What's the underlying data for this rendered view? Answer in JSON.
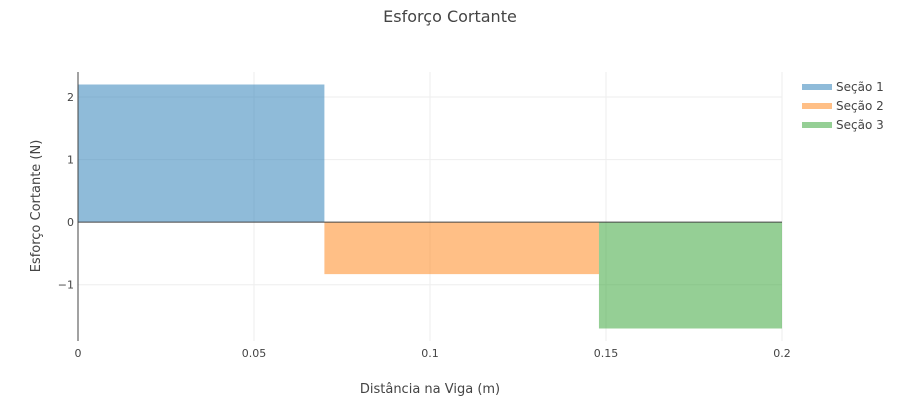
{
  "chart_data": {
    "type": "area",
    "title": "Esforço Cortante",
    "xlabel": "Distância na Viga (m)",
    "ylabel": "Esforço Cortante (N)",
    "xlim": [
      0,
      0.2
    ],
    "ylim": [
      -1.9,
      2.4
    ],
    "x_ticks": [
      {
        "value": 0,
        "label": "0"
      },
      {
        "value": 0.05,
        "label": "0.05"
      },
      {
        "value": 0.1,
        "label": "0.1"
      },
      {
        "value": 0.15,
        "label": "0.15"
      },
      {
        "value": 0.2,
        "label": "0.2"
      }
    ],
    "y_ticks": [
      {
        "value": -1,
        "label": "−1"
      },
      {
        "value": 0,
        "label": "0"
      },
      {
        "value": 1,
        "label": "1"
      },
      {
        "value": 2,
        "label": "2"
      }
    ],
    "grid": true,
    "legend_position": "top-right",
    "series": [
      {
        "name": "Seção 1",
        "x": [
          0,
          0.07
        ],
        "y": [
          2.2,
          2.2
        ],
        "color": "#1f77b4"
      },
      {
        "name": "Seção 2",
        "x": [
          0.07,
          0.148
        ],
        "y": [
          -0.83,
          -0.83
        ],
        "color": "#ff7f0e"
      },
      {
        "name": "Seção 3",
        "x": [
          0.148,
          0.2
        ],
        "y": [
          -1.7,
          -1.7
        ],
        "color": "#2ca02c"
      }
    ]
  }
}
